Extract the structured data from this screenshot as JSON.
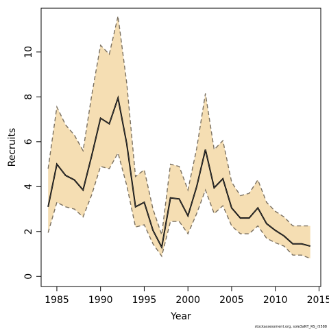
{
  "chart_data": {
    "type": "line",
    "xlabel": "Year",
    "ylabel": "Recruits",
    "xlim": [
      1983.2,
      2015.2
    ],
    "ylim": [
      -0.45,
      11.95
    ],
    "xticks": [
      1985,
      1990,
      1995,
      2000,
      2005,
      2010,
      2015
    ],
    "yticks": [
      0,
      2,
      4,
      6,
      8,
      10
    ],
    "x": [
      1984,
      1985,
      1986,
      1987,
      1988,
      1989,
      1990,
      1991,
      1992,
      1993,
      1994,
      1995,
      1996,
      1997,
      1998,
      1999,
      2000,
      2001,
      2002,
      2003,
      2004,
      2005,
      2006,
      2007,
      2008,
      2009,
      2010,
      2011,
      2012,
      2013,
      2014
    ],
    "series": [
      {
        "role": "estimate",
        "values": [
          3.1,
          5.0,
          4.5,
          4.3,
          3.85,
          5.4,
          7.05,
          6.8,
          7.95,
          5.9,
          3.1,
          3.3,
          2.05,
          1.3,
          3.5,
          3.45,
          2.7,
          4.0,
          5.65,
          3.95,
          4.35,
          3.05,
          2.6,
          2.6,
          3.05,
          2.35,
          2.05,
          1.8,
          1.45,
          1.45,
          1.35
        ]
      },
      {
        "role": "upper",
        "values": [
          4.8,
          7.55,
          6.75,
          6.3,
          5.6,
          8.1,
          10.3,
          9.9,
          11.6,
          8.6,
          4.45,
          4.75,
          3.0,
          1.85,
          5.0,
          4.9,
          3.85,
          5.7,
          8.15,
          5.65,
          6.05,
          4.2,
          3.6,
          3.7,
          4.3,
          3.3,
          2.9,
          2.65,
          2.25,
          2.25,
          2.25
        ]
      },
      {
        "role": "lower",
        "values": [
          1.95,
          3.3,
          3.1,
          3.0,
          2.65,
          3.65,
          4.9,
          4.8,
          5.5,
          4.05,
          2.2,
          2.3,
          1.45,
          0.9,
          2.45,
          2.45,
          1.9,
          2.8,
          3.85,
          2.8,
          3.15,
          2.25,
          1.9,
          1.9,
          2.25,
          1.7,
          1.5,
          1.35,
          0.95,
          0.95,
          0.8
        ]
      }
    ],
    "band_color": "#f5deb3",
    "estimate_color": "#000000",
    "bound_color": "#7a7060",
    "caption": "stockassessment.org, sole3aNT_RS_r5588"
  }
}
